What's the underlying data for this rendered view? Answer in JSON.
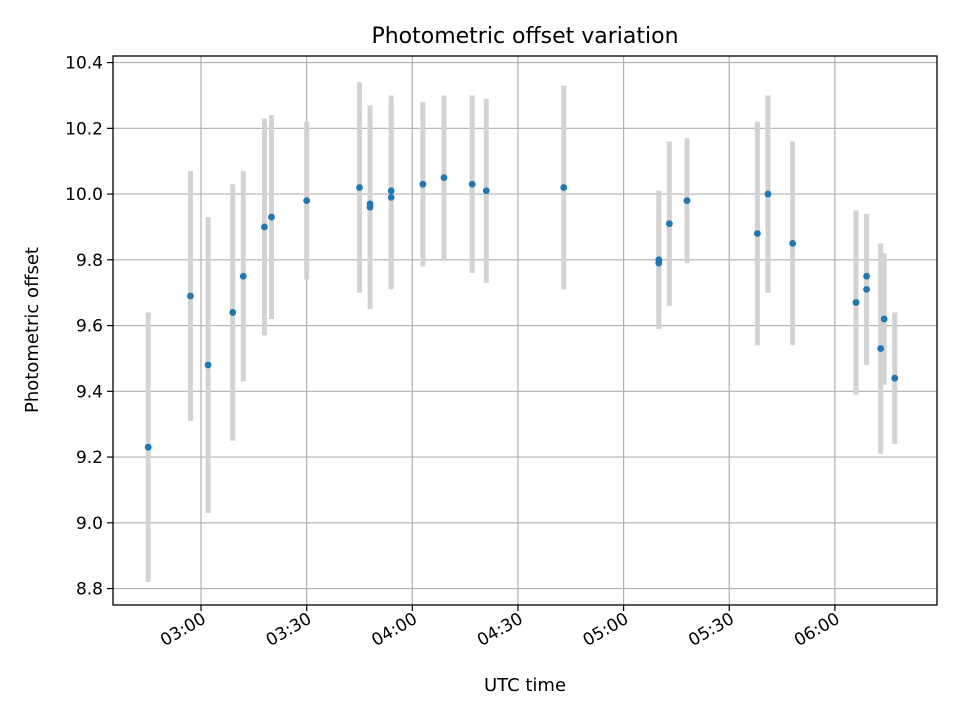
{
  "chart_data": {
    "type": "scatter",
    "title": "Photometric offset variation",
    "xlabel": "UTC time",
    "ylabel": "Photometric offset",
    "xlim": [
      "02:35",
      "06:29"
    ],
    "ylim": [
      8.75,
      10.42
    ],
    "x_ticks": [
      "03:00",
      "03:30",
      "04:00",
      "04:30",
      "05:00",
      "05:30",
      "06:00"
    ],
    "y_ticks": [
      8.8,
      9.0,
      9.2,
      9.4,
      9.6,
      9.8,
      10.0,
      10.2,
      10.4
    ],
    "grid": true,
    "colors": {
      "point": "#1f77b4",
      "errorbar": "#d3d3d3",
      "grid": "#b0b0b0",
      "axes": "#000000"
    },
    "points": [
      {
        "x": "02:45",
        "y": 9.23,
        "err": 0.41
      },
      {
        "x": "02:57",
        "y": 9.69,
        "err": 0.38
      },
      {
        "x": "03:02",
        "y": 9.48,
        "err": 0.45
      },
      {
        "x": "03:09",
        "y": 9.64,
        "err": 0.39
      },
      {
        "x": "03:12",
        "y": 9.75,
        "err": 0.32
      },
      {
        "x": "03:18",
        "y": 9.9,
        "err": 0.33
      },
      {
        "x": "03:20",
        "y": 9.93,
        "err": 0.31
      },
      {
        "x": "03:30",
        "y": 9.98,
        "err": 0.24
      },
      {
        "x": "03:45",
        "y": 10.02,
        "err": 0.32
      },
      {
        "x": "03:48",
        "y": 9.96,
        "err": 0.31
      },
      {
        "x": "03:48",
        "y": 9.97,
        "err": 0.0
      },
      {
        "x": "03:54",
        "y": 10.01,
        "err": 0.29
      },
      {
        "x": "03:54",
        "y": 9.99,
        "err": 0.28
      },
      {
        "x": "04:03",
        "y": 10.03,
        "err": 0.25
      },
      {
        "x": "04:09",
        "y": 10.05,
        "err": 0.25
      },
      {
        "x": "04:17",
        "y": 10.03,
        "err": 0.27
      },
      {
        "x": "04:21",
        "y": 10.01,
        "err": 0.28
      },
      {
        "x": "04:43",
        "y": 10.02,
        "err": 0.31
      },
      {
        "x": "05:10",
        "y": 9.8,
        "err": 0.21
      },
      {
        "x": "05:10",
        "y": 9.79,
        "err": 0.16
      },
      {
        "x": "05:13",
        "y": 9.91,
        "err": 0.25
      },
      {
        "x": "05:18",
        "y": 9.98,
        "err": 0.19
      },
      {
        "x": "05:38",
        "y": 9.88,
        "err": 0.34
      },
      {
        "x": "05:41",
        "y": 10.0,
        "err": 0.3
      },
      {
        "x": "05:48",
        "y": 9.85,
        "err": 0.31
      },
      {
        "x": "06:06",
        "y": 9.67,
        "err": 0.28
      },
      {
        "x": "06:09",
        "y": 9.75,
        "err": 0.0
      },
      {
        "x": "06:09",
        "y": 9.71,
        "err": 0.23
      },
      {
        "x": "06:13",
        "y": 9.53,
        "err": 0.32
      },
      {
        "x": "06:14",
        "y": 9.62,
        "err": 0.2
      },
      {
        "x": "06:17",
        "y": 9.44,
        "err": 0.2
      }
    ]
  }
}
